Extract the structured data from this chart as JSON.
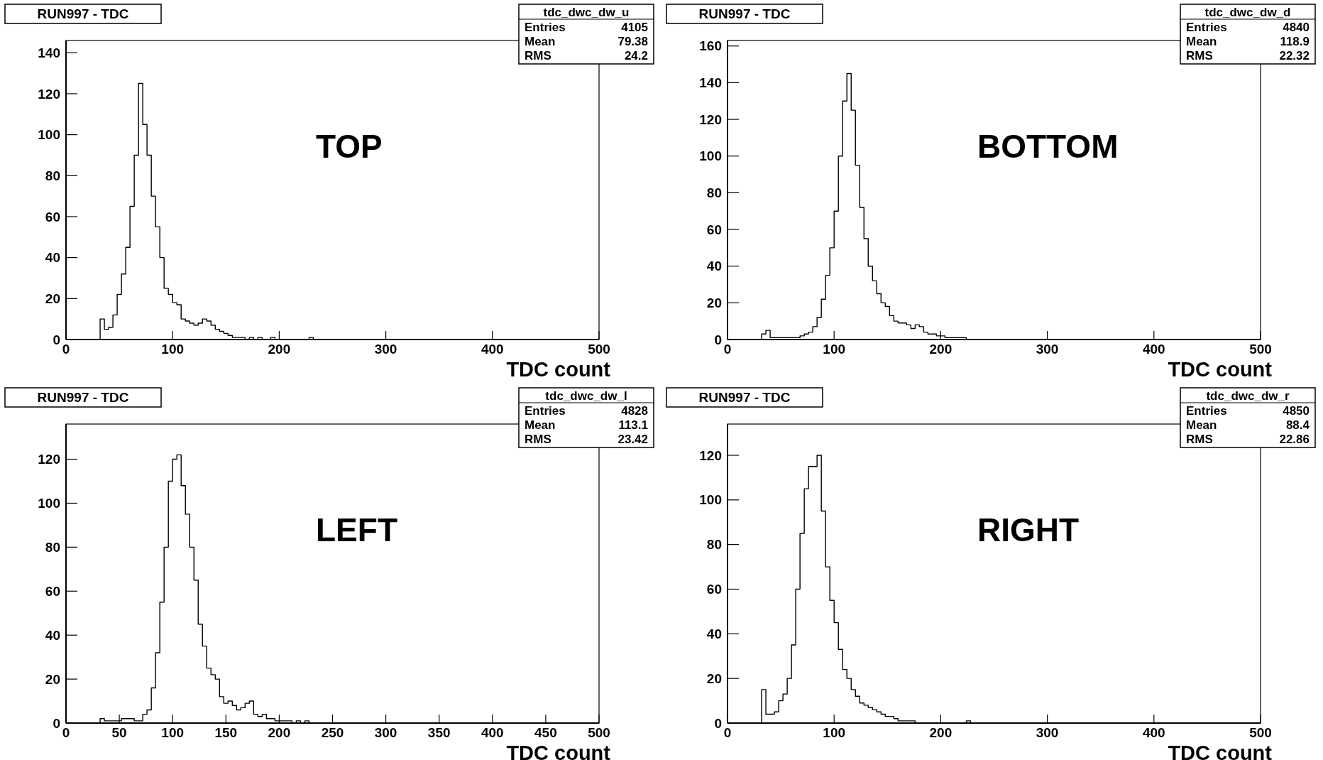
{
  "chart_data": [
    {
      "type": "histogram",
      "title": "RUN997 - TDC",
      "subtitle": "tdc_dwc_dw_u",
      "xlabel": "TDC count",
      "color": "#000000",
      "annotations": [
        "Entries",
        "4105",
        "Mean",
        "79.38",
        "RMS",
        "24.2",
        "TOP"
      ],
      "bins": [
        32,
        36,
        40,
        44,
        48,
        52,
        56,
        60,
        64,
        68,
        72,
        76,
        80,
        84,
        88,
        92,
        96,
        100,
        104,
        108,
        112,
        116,
        120,
        124,
        128,
        132,
        136,
        140,
        144,
        148,
        152,
        156,
        160,
        164,
        168,
        172,
        176,
        180,
        184,
        188,
        192,
        196,
        200,
        204,
        208,
        212,
        216,
        220,
        224,
        228,
        232
      ],
      "values": [
        10,
        5,
        6,
        12,
        22,
        32,
        45,
        65,
        90,
        125,
        105,
        90,
        70,
        55,
        40,
        25,
        22,
        18,
        17,
        10,
        9,
        8,
        7,
        8,
        10,
        9,
        7,
        5,
        4,
        3,
        2,
        1,
        1,
        1,
        0,
        1,
        0,
        1,
        0,
        0,
        1,
        0,
        0,
        0,
        0,
        0,
        0,
        0,
        0,
        1
      ],
      "xlim": [
        0,
        500
      ],
      "xticks": [
        0,
        100,
        200,
        300,
        400,
        500
      ],
      "ylim": [
        0,
        146
      ],
      "yticks": [
        0,
        20,
        40,
        60,
        80,
        100,
        120,
        140
      ],
      "grid": false
    },
    {
      "type": "histogram",
      "title": "RUN997 - TDC",
      "subtitle": "tdc_dwc_dw_d",
      "xlabel": "TDC count",
      "color": "#000000",
      "annotations": [
        "Entries",
        "4840",
        "Mean",
        "118.9",
        "RMS",
        "22.32",
        "BOTTOM"
      ],
      "bins": [
        32,
        36,
        40,
        44,
        48,
        52,
        56,
        60,
        64,
        68,
        72,
        76,
        80,
        84,
        88,
        92,
        96,
        100,
        104,
        108,
        112,
        116,
        120,
        124,
        128,
        132,
        136,
        140,
        144,
        148,
        152,
        156,
        160,
        164,
        168,
        172,
        176,
        180,
        184,
        188,
        192,
        196,
        200,
        204,
        208,
        212,
        216,
        220,
        224,
        228,
        232
      ],
      "values": [
        3,
        5,
        1,
        1,
        1,
        1,
        1,
        1,
        1,
        2,
        3,
        4,
        7,
        12,
        22,
        35,
        50,
        70,
        100,
        130,
        145,
        125,
        95,
        72,
        55,
        40,
        32,
        25,
        20,
        18,
        13,
        10,
        9,
        9,
        8,
        6,
        8,
        7,
        4,
        3,
        3,
        2,
        2,
        1,
        1,
        1,
        1,
        1,
        0,
        0
      ],
      "xlim": [
        0,
        500
      ],
      "xticks": [
        0,
        100,
        200,
        300,
        400,
        500
      ],
      "ylim": [
        0,
        163
      ],
      "yticks": [
        0,
        20,
        40,
        60,
        80,
        100,
        120,
        140,
        160
      ],
      "grid": false
    },
    {
      "type": "histogram",
      "title": "RUN997 - TDC",
      "subtitle": "tdc_dwc_dw_l",
      "xlabel": "TDC count",
      "color": "#000000",
      "annotations": [
        "Entries",
        "4828",
        "Mean",
        "113.1",
        "RMS",
        "23.42",
        "LEFT"
      ],
      "bins": [
        32,
        36,
        40,
        44,
        48,
        52,
        56,
        60,
        64,
        68,
        72,
        76,
        80,
        84,
        88,
        92,
        96,
        100,
        104,
        108,
        112,
        116,
        120,
        124,
        128,
        132,
        136,
        140,
        144,
        148,
        152,
        156,
        160,
        164,
        168,
        172,
        176,
        180,
        184,
        188,
        192,
        196,
        200,
        204,
        208,
        212,
        216,
        220,
        224,
        228,
        232
      ],
      "values": [
        2,
        1,
        1,
        1,
        1,
        2,
        2,
        2,
        1,
        1,
        4,
        6,
        16,
        32,
        55,
        80,
        110,
        120,
        122,
        108,
        95,
        80,
        65,
        45,
        35,
        25,
        22,
        20,
        12,
        9,
        10,
        8,
        6,
        7,
        9,
        10,
        4,
        3,
        4,
        2,
        2,
        1,
        1,
        1,
        1,
        0,
        1,
        0,
        1,
        0
      ],
      "xlim": [
        0,
        500
      ],
      "xticks": [
        0,
        50,
        100,
        150,
        200,
        250,
        300,
        350,
        400,
        450,
        500
      ],
      "ylim": [
        0,
        136
      ],
      "yticks": [
        0,
        20,
        40,
        60,
        80,
        100,
        120
      ],
      "grid": false
    },
    {
      "type": "histogram",
      "title": "RUN997 - TDC",
      "subtitle": "tdc_dwc_dw_r",
      "xlabel": "TDC count",
      "color": "#000000",
      "annotations": [
        "Entries",
        "4850",
        "Mean",
        "88.4",
        "RMS",
        "22.86",
        "RIGHT"
      ],
      "bins": [
        32,
        36,
        40,
        44,
        48,
        52,
        56,
        60,
        64,
        68,
        72,
        76,
        80,
        84,
        88,
        92,
        96,
        100,
        104,
        108,
        112,
        116,
        120,
        124,
        128,
        132,
        136,
        140,
        144,
        148,
        152,
        156,
        160,
        164,
        168,
        172,
        176,
        180,
        184,
        188,
        192,
        196,
        200,
        204,
        208,
        212,
        216,
        220,
        224,
        228,
        232
      ],
      "values": [
        15,
        4,
        4,
        5,
        10,
        13,
        20,
        35,
        60,
        85,
        105,
        115,
        115,
        120,
        95,
        70,
        55,
        45,
        33,
        24,
        20,
        15,
        12,
        9,
        8,
        7,
        6,
        5,
        4,
        3,
        3,
        2,
        1,
        1,
        1,
        1,
        0,
        0,
        0,
        0,
        0,
        0,
        0,
        0,
        0,
        0,
        0,
        0,
        1,
        0
      ],
      "xlim": [
        0,
        500
      ],
      "xticks": [
        0,
        100,
        200,
        300,
        400,
        500
      ],
      "ylim": [
        0,
        134
      ],
      "yticks": [
        0,
        20,
        40,
        60,
        80,
        100,
        120
      ],
      "grid": false
    }
  ]
}
